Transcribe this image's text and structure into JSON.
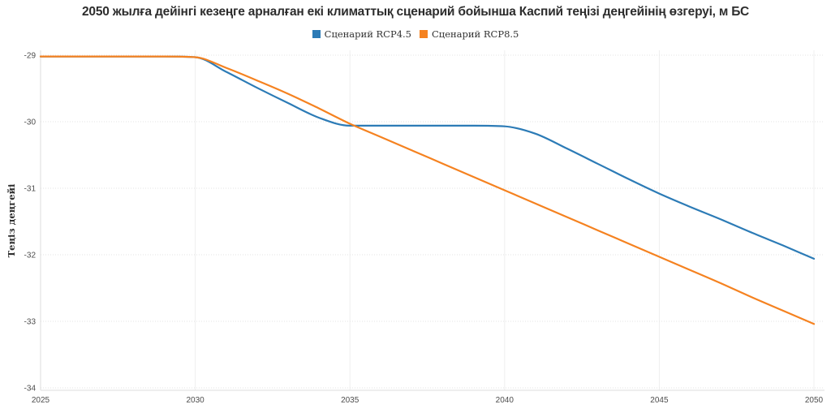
{
  "title": "2050 жылға дейінгі кезеңге арналған екі климаттық сценарий бойынша Каспий теңізі деңгейінің өзгеруі, м БС",
  "legend": {
    "items": [
      {
        "label": "Сценарий RCP4.5",
        "color": "#2c7bb6"
      },
      {
        "label": "Сценарий RCP8.5",
        "color": "#f58220"
      }
    ]
  },
  "colors": {
    "title_text": "#2d2d2d",
    "tick_text": "#4d4d4d",
    "grid_horizontal": "#e3e3e3",
    "grid_vertical": "#efefef",
    "axis_line": "#dcdcdc",
    "series_rcp45": "#2c7bb6",
    "series_rcp85": "#f58220"
  },
  "chart_data": {
    "type": "line",
    "title": "2050 жылға дейінгі кезеңге арналған екі климаттық сценарий бойынша Каспий теңізі деңгейінің өзгеруі, м БС",
    "xlabel": "",
    "ylabel": "Теңіз деңгейі",
    "xlim": [
      2025,
      2050
    ],
    "ylim": [
      -34,
      -29
    ],
    "x_ticks": [
      2025,
      2030,
      2035,
      2040,
      2045,
      2050
    ],
    "y_ticks": [
      -29,
      -30,
      -31,
      -32,
      -33,
      -34
    ],
    "grid": true,
    "legend_position": "top",
    "x": [
      2025,
      2026,
      2027,
      2028,
      2029,
      2030,
      2031,
      2032,
      2033,
      2034,
      2035,
      2036,
      2037,
      2038,
      2039,
      2040,
      2041,
      2042,
      2043,
      2044,
      2045,
      2046,
      2047,
      2048,
      2049,
      2050
    ],
    "series": [
      {
        "name": "Сценарий RCP4.5",
        "key": "rcp45",
        "color": "#2c7bb6",
        "values": [
          -29.02,
          -29.02,
          -29.02,
          -29.02,
          -29.02,
          -29.03,
          -29.25,
          -29.49,
          -29.72,
          -29.94,
          -30.06,
          -30.06,
          -30.06,
          -30.06,
          -30.06,
          -30.07,
          -30.18,
          -30.4,
          -30.63,
          -30.86,
          -31.08,
          -31.28,
          -31.47,
          -31.67,
          -31.86,
          -32.06
        ]
      },
      {
        "name": "Сценарий RCP8.5",
        "key": "rcp85",
        "color": "#f58220",
        "values": [
          -29.02,
          -29.02,
          -29.02,
          -29.02,
          -29.02,
          -29.03,
          -29.19,
          -29.38,
          -29.58,
          -29.8,
          -30.03,
          -30.23,
          -30.43,
          -30.63,
          -30.83,
          -31.03,
          -31.23,
          -31.43,
          -31.63,
          -31.83,
          -32.03,
          -32.23,
          -32.43,
          -32.64,
          -32.84,
          -33.04
        ]
      }
    ]
  }
}
